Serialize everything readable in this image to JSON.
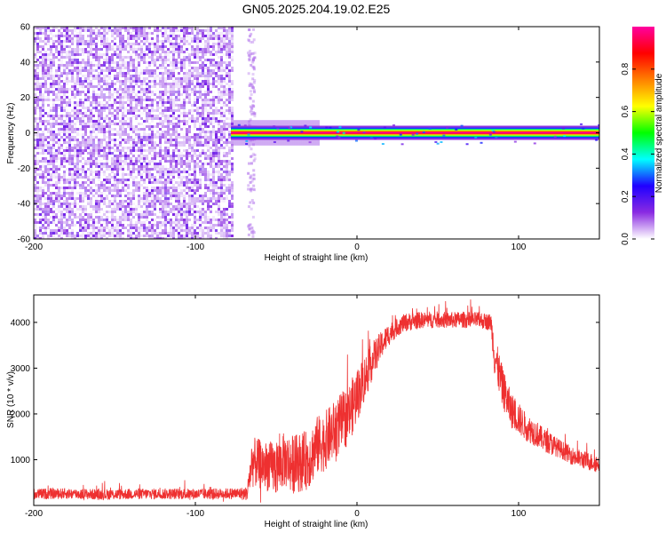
{
  "figure": {
    "title": "GN05.2025.204.19.02.E25"
  },
  "chart_data": [
    {
      "type": "heatmap",
      "xlabel": "Height of straight line (km)",
      "ylabel": "Frequency (Hz)",
      "xlim": [
        -200,
        150
      ],
      "ylim": [
        -60,
        60
      ],
      "x_ticks": [
        -200,
        -100,
        0,
        100
      ],
      "y_ticks": [
        -60,
        -40,
        -20,
        0,
        20,
        40,
        60
      ],
      "colorbar": {
        "label": "Normalized spectral amplitude",
        "range": [
          0,
          1
        ],
        "ticks": [
          0.0,
          0.2,
          0.4,
          0.6,
          0.8
        ],
        "colormap": [
          "#ffffff",
          "#8a2be2",
          "#2000ff",
          "#00ffff",
          "#00ff00",
          "#ffff00",
          "#ff8000",
          "#ff0000",
          "#ff00a0"
        ]
      },
      "regions": [
        {
          "x_range": [
            -200,
            -78
          ],
          "freq_range": [
            -60,
            60
          ],
          "amplitude_range": [
            0.0,
            0.3
          ],
          "pattern": "broadband speckle"
        },
        {
          "x_range": [
            -78,
            150
          ],
          "freq_center": 0,
          "freq_halfwidth": 4,
          "peak_amplitude": 1.0,
          "pattern": "narrow band at 0 Hz"
        }
      ],
      "grid": false
    },
    {
      "type": "line",
      "xlabel": "Height of straight line (km)",
      "ylabel": "SNR (10 * v/v)",
      "xlim": [
        -200,
        150
      ],
      "ylim": [
        0,
        4600
      ],
      "x_ticks": [
        -200,
        -100,
        0,
        100
      ],
      "y_ticks": [
        1000,
        2000,
        3000,
        4000
      ],
      "color": "#ee3030",
      "series": [
        {
          "x": [
            -200,
            -180,
            -160,
            -140,
            -120,
            -100,
            -80,
            -68,
            -65,
            -60,
            -55,
            -50,
            -45,
            -40,
            -35,
            -30,
            -25,
            -20,
            -15,
            -10,
            -5,
            0,
            5,
            10,
            15,
            20,
            25,
            30,
            35,
            40,
            45,
            50,
            55,
            60,
            65,
            70,
            75,
            80,
            83,
            85,
            90,
            95,
            100,
            105,
            110,
            115,
            120,
            125,
            130,
            135,
            140,
            145,
            150
          ],
          "y": [
            250,
            260,
            240,
            250,
            255,
            250,
            260,
            260,
            950,
            900,
            850,
            800,
            1000,
            900,
            950,
            1000,
            1300,
            1400,
            1600,
            1800,
            2000,
            2400,
            2800,
            3200,
            3500,
            3750,
            3900,
            4000,
            4030,
            4050,
            4050,
            4060,
            4050,
            4050,
            4060,
            4050,
            4050,
            4020,
            4000,
            3300,
            2600,
            2100,
            1900,
            1700,
            1600,
            1450,
            1350,
            1250,
            1150,
            1050,
            1000,
            950,
            900
          ],
          "noise_amplitude": [
            120,
            120,
            120,
            120,
            120,
            120,
            120,
            150,
            550,
            550,
            550,
            600,
            600,
            650,
            650,
            650,
            650,
            650,
            650,
            650,
            650,
            600,
            500,
            400,
            300,
            250,
            200,
            200,
            200,
            180,
            180,
            180,
            180,
            180,
            180,
            180,
            180,
            180,
            200,
            450,
            450,
            400,
            350,
            300,
            300,
            250,
            250,
            200,
            200,
            200,
            200,
            200,
            200
          ]
        }
      ],
      "grid": false
    }
  ]
}
